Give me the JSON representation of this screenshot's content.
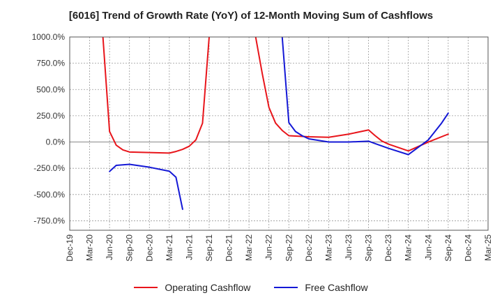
{
  "chart_data": {
    "type": "line",
    "title": "[6016]  Trend of Growth Rate (YoY) of 12-Month Moving Sum of Cashflows",
    "xlabel": "",
    "ylabel": "",
    "x_ticks": [
      "Dec-19",
      "Mar-20",
      "Jun-20",
      "Sep-20",
      "Dec-20",
      "Mar-21",
      "Jun-21",
      "Sep-21",
      "Dec-21",
      "Mar-22",
      "Jun-22",
      "Sep-22",
      "Dec-22",
      "Mar-23",
      "Jun-23",
      "Sep-23",
      "Dec-23",
      "Mar-24",
      "Jun-24",
      "Sep-24",
      "Dec-24",
      "Mar-25"
    ],
    "y_ticks": [
      "1000.0%",
      "750.0%",
      "500.0%",
      "250.0%",
      "0.0%",
      "-250.0%",
      "-500.0%",
      "-750.0%"
    ],
    "y_tick_values": [
      1000,
      750,
      500,
      250,
      0,
      -250,
      -500,
      -750
    ],
    "ylim": [
      -840,
      1000
    ],
    "grid": true,
    "legend_position": "bottom",
    "series": [
      {
        "name": "Operating Cashflow",
        "color": "#e8151b",
        "points": [
          [
            "May-20",
            1000
          ],
          [
            "Jun-20",
            100
          ],
          [
            "Jul-20",
            -30
          ],
          [
            "Aug-20",
            -75
          ],
          [
            "Sep-20",
            -95
          ],
          [
            "Oct-20",
            -97
          ],
          [
            "Dec-20",
            -100
          ],
          [
            "Mar-21",
            -105
          ],
          [
            "Apr-21",
            -90
          ],
          [
            "May-21",
            -70
          ],
          [
            "Jun-21",
            -40
          ],
          [
            "Jul-21",
            20
          ],
          [
            "Aug-21",
            180
          ],
          [
            "Sep-21",
            1000
          ],
          null,
          [
            "Apr-22",
            1000
          ],
          [
            "May-22",
            650
          ],
          [
            "Jun-22",
            330
          ],
          [
            "Jul-22",
            180
          ],
          [
            "Aug-22",
            110
          ],
          [
            "Sep-22",
            60
          ],
          [
            "Dec-22",
            50
          ],
          [
            "Mar-23",
            45
          ],
          [
            "Jun-23",
            75
          ],
          [
            "Sep-23",
            115
          ],
          [
            "Oct-23",
            60
          ],
          [
            "Nov-23",
            10
          ],
          [
            "Dec-23",
            -20
          ],
          [
            "Mar-24",
            -85
          ],
          [
            "Jun-24",
            0
          ],
          [
            "Sep-24",
            75
          ]
        ]
      },
      {
        "name": "Free Cashflow",
        "color": "#1418d6",
        "points": [
          [
            "Jun-20",
            -280
          ],
          [
            "Jul-20",
            -222
          ],
          [
            "Sep-20",
            -212
          ],
          [
            "Dec-20",
            -240
          ],
          [
            "Mar-21",
            -278
          ],
          [
            "Apr-21",
            -335
          ],
          [
            "May-21",
            -640
          ],
          null,
          [
            "Aug-22",
            1000
          ],
          [
            "Sep-22",
            185
          ],
          [
            "Oct-22",
            100
          ],
          [
            "Nov-22",
            60
          ],
          [
            "Dec-22",
            30
          ],
          [
            "Mar-23",
            0
          ],
          [
            "Jun-23",
            0
          ],
          [
            "Sep-23",
            8
          ],
          [
            "Oct-23",
            -15
          ],
          [
            "Dec-23",
            -60
          ],
          [
            "Mar-24",
            -120
          ],
          [
            "Jun-24",
            20
          ],
          [
            "Aug-24",
            180
          ],
          [
            "Sep-24",
            275
          ]
        ]
      }
    ]
  }
}
